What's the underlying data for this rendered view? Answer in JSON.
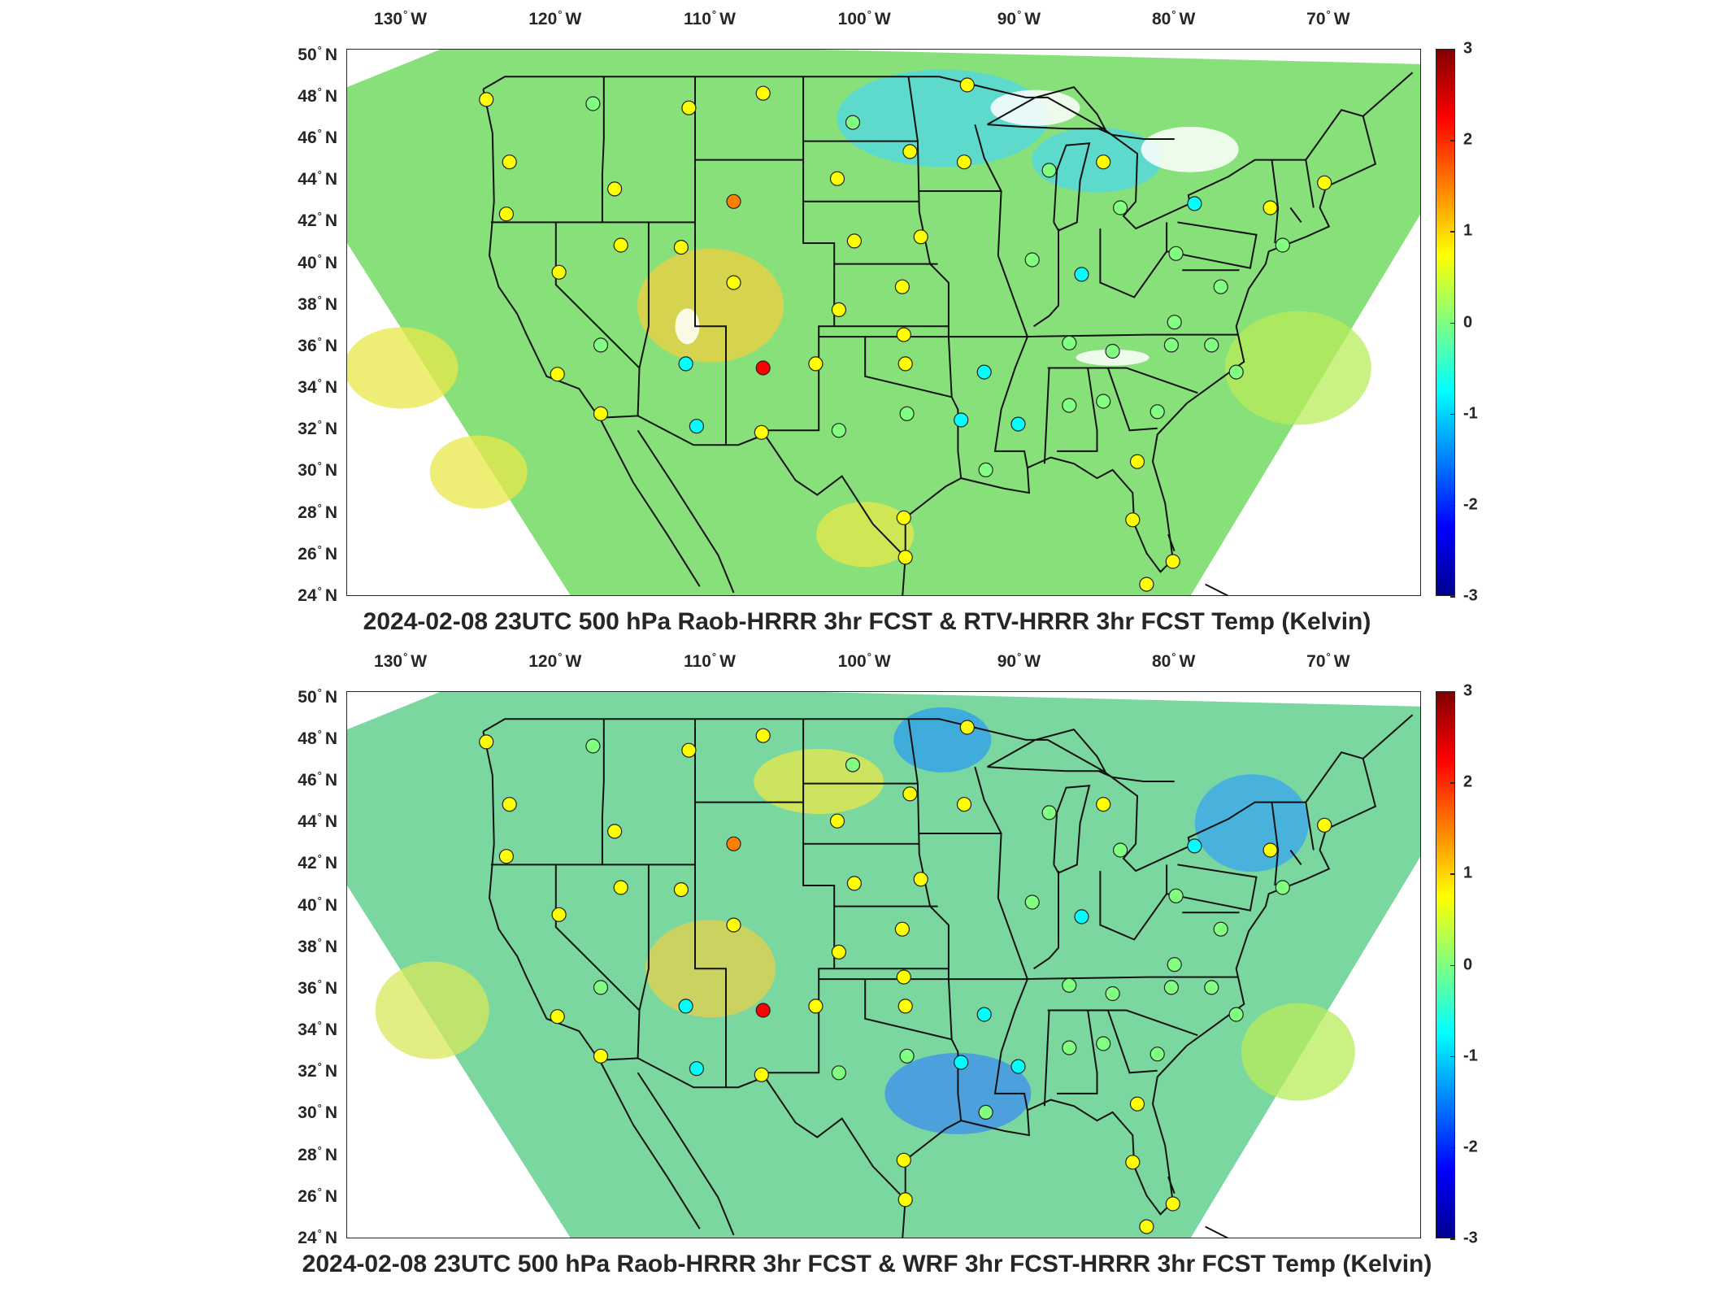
{
  "colorbar": {
    "ticks": [
      "3",
      "2",
      "1",
      "0",
      "-1",
      "-2",
      "-3"
    ],
    "range": [
      -3,
      3
    ],
    "colormap": [
      "#00008f",
      "#0000ff",
      "#0080ff",
      "#00ffff",
      "#80ff80",
      "#ffff00",
      "#ff8000",
      "#ff0000",
      "#800000"
    ]
  },
  "lon_labels": [
    "130",
    "120",
    "110",
    "100",
    "90",
    "80",
    "70"
  ],
  "lon_hemisphere": "W",
  "lat_labels": [
    "50",
    "48",
    "46",
    "44",
    "42",
    "40",
    "38",
    "36",
    "34",
    "32",
    "30",
    "28",
    "26",
    "24"
  ],
  "lat_hemisphere": "N",
  "panels": [
    {
      "title": "2024-02-08 23UTC 500 hPa Raob-HRRR 3hr FCST & RTV-HRRR 3hr FCST Temp (Kelvin)",
      "background_color": "#88e07a",
      "stations": [
        {
          "lon": -124.5,
          "lat": 47.9,
          "value": 0.5
        },
        {
          "lon": -117.6,
          "lat": 47.7,
          "value": 0.3
        },
        {
          "lon": -111.4,
          "lat": 47.5,
          "value": 0.5
        },
        {
          "lon": -106.6,
          "lat": 48.2,
          "value": 0.8
        },
        {
          "lon": -100.8,
          "lat": 46.8,
          "value": 0.1
        },
        {
          "lon": -93.4,
          "lat": 48.6,
          "value": 0.9
        },
        {
          "lon": -97.1,
          "lat": 45.4,
          "value": 0.5
        },
        {
          "lon": -93.6,
          "lat": 44.9,
          "value": 0.8
        },
        {
          "lon": -123.0,
          "lat": 44.9,
          "value": 0.6
        },
        {
          "lon": -116.2,
          "lat": 43.6,
          "value": 0.6
        },
        {
          "lon": -108.5,
          "lat": 43.0,
          "value": 1.6
        },
        {
          "lon": -101.8,
          "lat": 44.1,
          "value": 0.4
        },
        {
          "lon": -123.2,
          "lat": 42.4,
          "value": 0.4
        },
        {
          "lon": -115.8,
          "lat": 40.9,
          "value": 0.9
        },
        {
          "lon": -111.9,
          "lat": 40.8,
          "value": 0.8
        },
        {
          "lon": -100.7,
          "lat": 41.1,
          "value": 0.8
        },
        {
          "lon": -96.4,
          "lat": 41.3,
          "value": 0.8
        },
        {
          "lon": -89.2,
          "lat": 40.2,
          "value": 0.2
        },
        {
          "lon": -119.8,
          "lat": 39.6,
          "value": 0.4
        },
        {
          "lon": -108.5,
          "lat": 39.1,
          "value": 0.6
        },
        {
          "lon": -97.6,
          "lat": 38.9,
          "value": 0.7
        },
        {
          "lon": -101.7,
          "lat": 37.8,
          "value": 0.6
        },
        {
          "lon": -117.1,
          "lat": 36.1,
          "value": 0.3
        },
        {
          "lon": -111.6,
          "lat": 35.2,
          "value": -0.9
        },
        {
          "lon": -106.6,
          "lat": 35.0,
          "value": 2.6
        },
        {
          "lon": -103.2,
          "lat": 35.2,
          "value": 0.4
        },
        {
          "lon": -97.5,
          "lat": 36.6,
          "value": 0.8
        },
        {
          "lon": -97.4,
          "lat": 35.2,
          "value": 0.8
        },
        {
          "lon": -92.3,
          "lat": 34.8,
          "value": -1.1
        },
        {
          "lon": -86.8,
          "lat": 36.2,
          "value": -0.3
        },
        {
          "lon": -84.0,
          "lat": 35.8,
          "value": 0.3
        },
        {
          "lon": -117.1,
          "lat": 32.8,
          "value": 0.5
        },
        {
          "lon": -119.9,
          "lat": 34.7,
          "value": 0.5
        },
        {
          "lon": -110.9,
          "lat": 32.2,
          "value": -0.8
        },
        {
          "lon": -106.7,
          "lat": 31.9,
          "value": 0.4
        },
        {
          "lon": -101.7,
          "lat": 32.0,
          "value": 0.0
        },
        {
          "lon": -97.3,
          "lat": 32.8,
          "value": -0.3
        },
        {
          "lon": -93.8,
          "lat": 32.5,
          "value": -0.5
        },
        {
          "lon": -90.1,
          "lat": 32.3,
          "value": -0.5
        },
        {
          "lon": -86.8,
          "lat": 33.2,
          "value": -0.3
        },
        {
          "lon": -84.6,
          "lat": 33.4,
          "value": -0.3
        },
        {
          "lon": -81.1,
          "lat": 32.9,
          "value": 0.0
        },
        {
          "lon": -92.2,
          "lat": 30.1,
          "value": -0.3
        },
        {
          "lon": -97.5,
          "lat": 27.8,
          "value": 0.8
        },
        {
          "lon": -97.4,
          "lat": 25.9,
          "value": 0.7
        },
        {
          "lon": -82.4,
          "lat": 30.5,
          "value": 0.7
        },
        {
          "lon": -82.7,
          "lat": 27.7,
          "value": 0.5
        },
        {
          "lon": -80.1,
          "lat": 25.7,
          "value": 0.5
        },
        {
          "lon": -81.8,
          "lat": 24.6,
          "value": 0.8
        },
        {
          "lon": -88.1,
          "lat": 44.5,
          "value": 0.2
        },
        {
          "lon": -84.6,
          "lat": 44.9,
          "value": 0.4
        },
        {
          "lon": -83.5,
          "lat": 42.7,
          "value": 0.2
        },
        {
          "lon": -79.9,
          "lat": 40.5,
          "value": 0.1
        },
        {
          "lon": -77.0,
          "lat": 38.9,
          "value": 0.2
        },
        {
          "lon": -80.0,
          "lat": 37.2,
          "value": 0.3
        },
        {
          "lon": -77.6,
          "lat": 36.1,
          "value": 0.1
        },
        {
          "lon": -76.0,
          "lat": 34.8,
          "value": 0.1
        },
        {
          "lon": -86.0,
          "lat": 39.5,
          "value": -0.6
        },
        {
          "lon": -73.8,
          "lat": 42.7,
          "value": 0.5
        },
        {
          "lon": -70.3,
          "lat": 43.9,
          "value": 0.9
        },
        {
          "lon": -73.0,
          "lat": 40.9,
          "value": 0.3
        },
        {
          "lon": -78.7,
          "lat": 42.9,
          "value": -0.8
        },
        {
          "lon": -80.2,
          "lat": 36.1,
          "value": 0.0
        }
      ]
    },
    {
      "title": "2024-02-08 23UTC 500 hPa Raob-HRRR 3hr FCST & WRF 3hr FCST-HRRR 3hr FCST Temp (Kelvin)",
      "background_color": "#7ad7a0",
      "stations": [
        {
          "lon": -124.5,
          "lat": 47.9,
          "value": 0.5
        },
        {
          "lon": -117.6,
          "lat": 47.7,
          "value": 0.3
        },
        {
          "lon": -111.4,
          "lat": 47.5,
          "value": 0.5
        },
        {
          "lon": -106.6,
          "lat": 48.2,
          "value": 0.8
        },
        {
          "lon": -100.8,
          "lat": 46.8,
          "value": 0.1
        },
        {
          "lon": -93.4,
          "lat": 48.6,
          "value": 0.9
        },
        {
          "lon": -97.1,
          "lat": 45.4,
          "value": 0.5
        },
        {
          "lon": -93.6,
          "lat": 44.9,
          "value": 0.8
        },
        {
          "lon": -123.0,
          "lat": 44.9,
          "value": 0.6
        },
        {
          "lon": -116.2,
          "lat": 43.6,
          "value": 0.6
        },
        {
          "lon": -108.5,
          "lat": 43.0,
          "value": 1.6
        },
        {
          "lon": -101.8,
          "lat": 44.1,
          "value": 0.4
        },
        {
          "lon": -123.2,
          "lat": 42.4,
          "value": 0.4
        },
        {
          "lon": -115.8,
          "lat": 40.9,
          "value": 0.9
        },
        {
          "lon": -111.9,
          "lat": 40.8,
          "value": 0.8
        },
        {
          "lon": -100.7,
          "lat": 41.1,
          "value": 0.8
        },
        {
          "lon": -96.4,
          "lat": 41.3,
          "value": 0.8
        },
        {
          "lon": -89.2,
          "lat": 40.2,
          "value": 0.2
        },
        {
          "lon": -119.8,
          "lat": 39.6,
          "value": 0.4
        },
        {
          "lon": -108.5,
          "lat": 39.1,
          "value": 0.6
        },
        {
          "lon": -97.6,
          "lat": 38.9,
          "value": 0.7
        },
        {
          "lon": -101.7,
          "lat": 37.8,
          "value": 0.6
        },
        {
          "lon": -117.1,
          "lat": 36.1,
          "value": 0.3
        },
        {
          "lon": -111.6,
          "lat": 35.2,
          "value": -0.9
        },
        {
          "lon": -106.6,
          "lat": 35.0,
          "value": 2.6
        },
        {
          "lon": -103.2,
          "lat": 35.2,
          "value": 0.4
        },
        {
          "lon": -97.5,
          "lat": 36.6,
          "value": 0.8
        },
        {
          "lon": -97.4,
          "lat": 35.2,
          "value": 0.8
        },
        {
          "lon": -92.3,
          "lat": 34.8,
          "value": -1.1
        },
        {
          "lon": -86.8,
          "lat": 36.2,
          "value": -0.3
        },
        {
          "lon": -84.0,
          "lat": 35.8,
          "value": 0.3
        },
        {
          "lon": -117.1,
          "lat": 32.8,
          "value": 0.5
        },
        {
          "lon": -119.9,
          "lat": 34.7,
          "value": 0.5
        },
        {
          "lon": -110.9,
          "lat": 32.2,
          "value": -0.8
        },
        {
          "lon": -106.7,
          "lat": 31.9,
          "value": 0.4
        },
        {
          "lon": -101.7,
          "lat": 32.0,
          "value": 0.0
        },
        {
          "lon": -97.3,
          "lat": 32.8,
          "value": -0.3
        },
        {
          "lon": -93.8,
          "lat": 32.5,
          "value": -0.5
        },
        {
          "lon": -90.1,
          "lat": 32.3,
          "value": -0.5
        },
        {
          "lon": -86.8,
          "lat": 33.2,
          "value": -0.3
        },
        {
          "lon": -84.6,
          "lat": 33.4,
          "value": -0.3
        },
        {
          "lon": -81.1,
          "lat": 32.9,
          "value": 0.0
        },
        {
          "lon": -92.2,
          "lat": 30.1,
          "value": -0.3
        },
        {
          "lon": -97.5,
          "lat": 27.8,
          "value": 0.8
        },
        {
          "lon": -97.4,
          "lat": 25.9,
          "value": 0.7
        },
        {
          "lon": -82.4,
          "lat": 30.5,
          "value": 0.7
        },
        {
          "lon": -82.7,
          "lat": 27.7,
          "value": 0.5
        },
        {
          "lon": -80.1,
          "lat": 25.7,
          "value": 0.5
        },
        {
          "lon": -81.8,
          "lat": 24.6,
          "value": 0.8
        },
        {
          "lon": -88.1,
          "lat": 44.5,
          "value": 0.2
        },
        {
          "lon": -84.6,
          "lat": 44.9,
          "value": 0.4
        },
        {
          "lon": -83.5,
          "lat": 42.7,
          "value": 0.2
        },
        {
          "lon": -79.9,
          "lat": 40.5,
          "value": 0.1
        },
        {
          "lon": -77.0,
          "lat": 38.9,
          "value": 0.2
        },
        {
          "lon": -80.0,
          "lat": 37.2,
          "value": 0.3
        },
        {
          "lon": -77.6,
          "lat": 36.1,
          "value": 0.1
        },
        {
          "lon": -76.0,
          "lat": 34.8,
          "value": 0.1
        },
        {
          "lon": -86.0,
          "lat": 39.5,
          "value": -0.6
        },
        {
          "lon": -73.8,
          "lat": 42.7,
          "value": 0.5
        },
        {
          "lon": -70.3,
          "lat": 43.9,
          "value": 0.9
        },
        {
          "lon": -73.0,
          "lat": 40.9,
          "value": 0.3
        },
        {
          "lon": -78.7,
          "lat": 42.9,
          "value": -0.8
        },
        {
          "lon": -80.2,
          "lat": 36.1,
          "value": 0.0
        }
      ]
    }
  ]
}
